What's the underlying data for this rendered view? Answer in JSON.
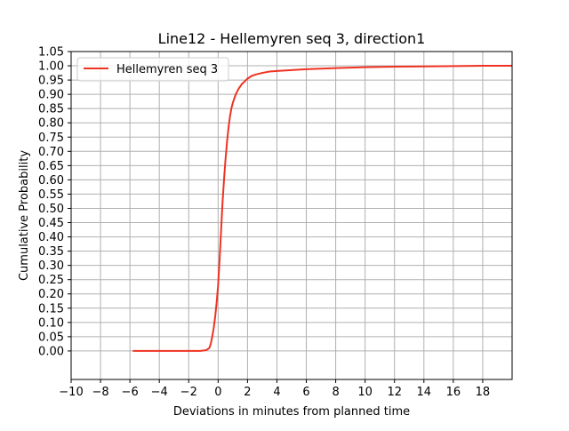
{
  "chart_data": {
    "type": "line",
    "title": "Line12 - Hellemyren seq 3, direction1",
    "xlabel": "Deviations in minutes from planned time",
    "ylabel": "Cumulative Probability",
    "xlim": [
      -10,
      20
    ],
    "ylim": [
      -0.1,
      1.05
    ],
    "xticks": [
      -10,
      -8,
      -6,
      -4,
      -2,
      0,
      2,
      4,
      6,
      8,
      10,
      12,
      14,
      16,
      18
    ],
    "xtick_labels": [
      "−10",
      "−8",
      "−6",
      "−4",
      "−2",
      "0",
      "2",
      "4",
      "6",
      "8",
      "10",
      "12",
      "14",
      "16",
      "18"
    ],
    "yticks": [
      0.0,
      0.05,
      0.1,
      0.15,
      0.2,
      0.25,
      0.3,
      0.35,
      0.4,
      0.45,
      0.5,
      0.55,
      0.6,
      0.65,
      0.7,
      0.75,
      0.8,
      0.85,
      0.9,
      0.95,
      1.0,
      1.05
    ],
    "ytick_labels": [
      "0.00",
      "0.05",
      "0.10",
      "0.15",
      "0.20",
      "0.25",
      "0.30",
      "0.35",
      "0.40",
      "0.45",
      "0.50",
      "0.55",
      "0.60",
      "0.65",
      "0.70",
      "0.75",
      "0.80",
      "0.85",
      "0.90",
      "0.95",
      "1.00",
      "1.05"
    ],
    "grid": true,
    "legend_position": "top-left",
    "series": [
      {
        "name": "Hellemyren seq 3",
        "color": "#ee3322",
        "x": [
          -5.8,
          -4,
          -2,
          -1.2,
          -0.8,
          -0.6,
          -0.5,
          -0.4,
          -0.3,
          -0.2,
          -0.1,
          0.0,
          0.1,
          0.2,
          0.3,
          0.4,
          0.5,
          0.6,
          0.7,
          0.8,
          0.9,
          1.0,
          1.2,
          1.4,
          1.6,
          1.8,
          2.0,
          2.3,
          2.6,
          3.0,
          3.5,
          4,
          5,
          6,
          8,
          10,
          12,
          14,
          16,
          18,
          20
        ],
        "y": [
          0.0,
          0.0,
          0.0,
          0.0,
          0.003,
          0.01,
          0.025,
          0.05,
          0.08,
          0.12,
          0.17,
          0.23,
          0.32,
          0.42,
          0.52,
          0.6,
          0.67,
          0.73,
          0.78,
          0.82,
          0.85,
          0.87,
          0.9,
          0.92,
          0.935,
          0.945,
          0.955,
          0.965,
          0.97,
          0.975,
          0.98,
          0.982,
          0.985,
          0.988,
          0.992,
          0.995,
          0.997,
          0.998,
          0.999,
          1.0,
          1.0
        ]
      }
    ]
  }
}
